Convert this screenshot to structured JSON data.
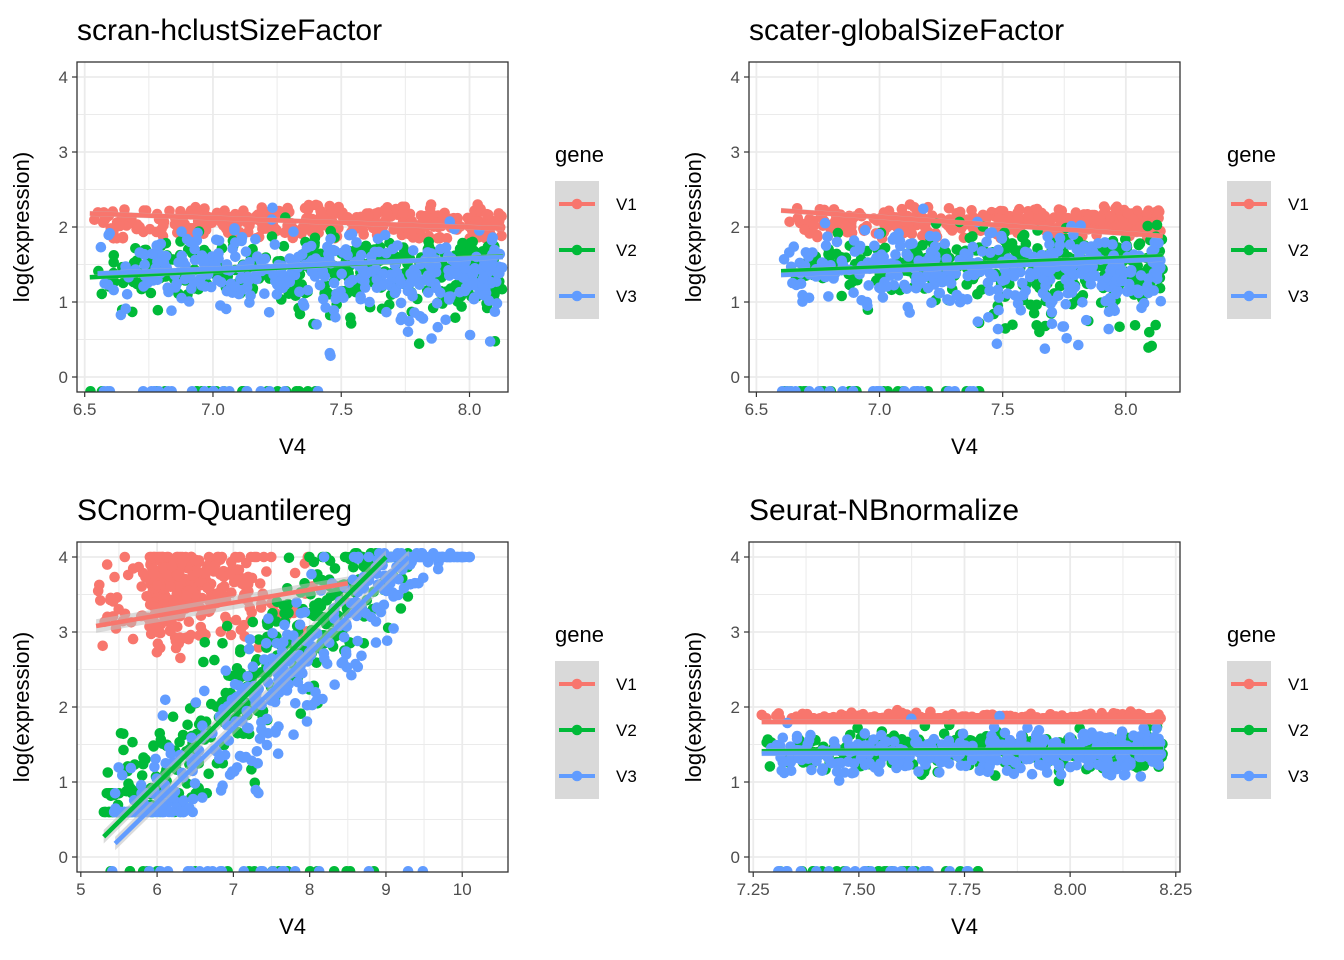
{
  "colors": {
    "V1": "#F8766D",
    "V2": "#00BA38",
    "V3": "#619CFF",
    "grid": "#ebebeb",
    "legend_key_bg": "#d9d9d9",
    "band": "#bdbdbd"
  },
  "chart_data": [
    {
      "type": "scatter",
      "title": "scran-hclustSizeFactor",
      "xlabel": "V4",
      "ylabel": "log(expression)",
      "xlim": [
        6.47,
        8.15
      ],
      "ylim": [
        -0.2,
        4.2
      ],
      "xticks": [
        6.5,
        7.0,
        7.5,
        8.0
      ],
      "xtick_labels": [
        "6.5",
        "7.0",
        "7.5",
        "8.0"
      ],
      "yticks": [
        0,
        1,
        2,
        3,
        4
      ],
      "ytick_labels": [
        "0",
        "1",
        "2",
        "3",
        "4"
      ],
      "legend": {
        "title": "gene",
        "entries": [
          "V1",
          "V2",
          "V3"
        ]
      },
      "series": [
        {
          "name": "V1",
          "x_range": [
            6.52,
            8.13
          ],
          "y_center": 2.06,
          "y_spread": 0.18,
          "fit": [
            [
              6.52,
              2.18
            ],
            [
              8.13,
              1.98
            ]
          ]
        },
        {
          "name": "V2",
          "x_range": [
            6.52,
            8.13
          ],
          "y_center": 1.45,
          "y_spread": 0.22,
          "fit": [
            [
              6.52,
              1.33
            ],
            [
              8.13,
              1.61
            ]
          ]
        },
        {
          "name": "V3",
          "x_range": [
            6.55,
            8.13
          ],
          "y_center": 1.42,
          "y_spread": 0.25,
          "fit": [
            [
              6.55,
              1.38
            ],
            [
              8.13,
              1.6
            ]
          ]
        }
      ]
    },
    {
      "type": "scatter",
      "title": "scater-globalSizeFactor",
      "xlabel": "V4",
      "ylabel": "log(expression)",
      "xlim": [
        6.47,
        8.22
      ],
      "ylim": [
        -0.2,
        4.2
      ],
      "xticks": [
        6.5,
        7.0,
        7.5,
        8.0
      ],
      "xtick_labels": [
        "6.5",
        "7.0",
        "7.5",
        "8.0"
      ],
      "yticks": [
        0,
        1,
        2,
        3,
        4
      ],
      "ytick_labels": [
        "0",
        "1",
        "2",
        "3",
        "4"
      ],
      "legend": {
        "title": "gene",
        "entries": [
          "V1",
          "V2",
          "V3"
        ]
      },
      "series": [
        {
          "name": "V1",
          "x_range": [
            6.6,
            8.15
          ],
          "y_center": 2.06,
          "y_spread": 0.16,
          "fit": [
            [
              6.6,
              2.22
            ],
            [
              8.15,
              1.88
            ]
          ]
        },
        {
          "name": "V2",
          "x_range": [
            6.6,
            8.15
          ],
          "y_center": 1.5,
          "y_spread": 0.2,
          "fit": [
            [
              6.6,
              1.41
            ],
            [
              8.15,
              1.61
            ]
          ]
        },
        {
          "name": "V3",
          "x_range": [
            6.6,
            8.15
          ],
          "y_center": 1.45,
          "y_spread": 0.24,
          "fit": [
            [
              6.6,
              1.36
            ],
            [
              8.15,
              1.57
            ]
          ]
        }
      ]
    },
    {
      "type": "scatter",
      "title": "SCnorm-Quantilereg",
      "xlabel": "V4",
      "ylabel": "log(expression)",
      "xlim": [
        4.95,
        10.6
      ],
      "ylim": [
        -0.2,
        4.2
      ],
      "xticks": [
        5,
        6,
        7,
        8,
        9,
        10
      ],
      "xtick_labels": [
        "5",
        "6",
        "7",
        "8",
        "9",
        "10"
      ],
      "yticks": [
        0,
        1,
        2,
        3,
        4
      ],
      "ytick_labels": [
        "0",
        "1",
        "2",
        "3",
        "4"
      ],
      "legend": {
        "title": "gene",
        "entries": [
          "V1",
          "V2",
          "V3"
        ]
      },
      "series": [
        {
          "name": "V1",
          "x_range": [
            5.2,
            8.5
          ],
          "y_center": 3.4,
          "y_spread": 0.55,
          "fit": [
            [
              5.2,
              3.08
            ],
            [
              8.5,
              3.65
            ]
          ]
        },
        {
          "name": "V2",
          "x_range": [
            5.3,
            9.3
          ],
          "y_center": 2.0,
          "y_spread": 0.6,
          "fit": [
            [
              5.3,
              0.27
            ],
            [
              9.0,
              4.0
            ]
          ]
        },
        {
          "name": "V3",
          "x_range": [
            5.4,
            10.1
          ],
          "y_center": 1.9,
          "y_spread": 0.6,
          "fit": [
            [
              5.45,
              0.18
            ],
            [
              9.3,
              4.0
            ]
          ]
        }
      ]
    },
    {
      "type": "scatter",
      "title": "Seurat-NBnormalize",
      "xlabel": "V4",
      "ylabel": "log(expression)",
      "xlim": [
        7.24,
        8.26
      ],
      "ylim": [
        -0.2,
        4.2
      ],
      "xticks": [
        7.25,
        7.5,
        7.75,
        8.0,
        8.25
      ],
      "xtick_labels": [
        "7.25",
        "7.50",
        "7.75",
        "8.00",
        "8.25"
      ],
      "yticks": [
        0,
        1,
        2,
        3,
        4
      ],
      "ytick_labels": [
        "0",
        "1",
        "2",
        "3",
        "4"
      ],
      "legend": {
        "title": "gene",
        "entries": [
          "V1",
          "V2",
          "V3"
        ]
      },
      "series": [
        {
          "name": "V1",
          "x_range": [
            7.27,
            8.22
          ],
          "y_center": 1.82,
          "y_spread": 0.08,
          "fit": [
            [
              7.27,
              1.8
            ],
            [
              8.22,
              1.8
            ]
          ]
        },
        {
          "name": "V2",
          "x_range": [
            7.27,
            8.22
          ],
          "y_center": 1.42,
          "y_spread": 0.12,
          "fit": [
            [
              7.27,
              1.41
            ],
            [
              8.22,
              1.44
            ]
          ]
        },
        {
          "name": "V3",
          "x_range": [
            7.27,
            8.22
          ],
          "y_center": 1.38,
          "y_spread": 0.14,
          "fit": [
            [
              7.27,
              1.38
            ],
            [
              8.22,
              1.4
            ]
          ]
        }
      ]
    }
  ]
}
